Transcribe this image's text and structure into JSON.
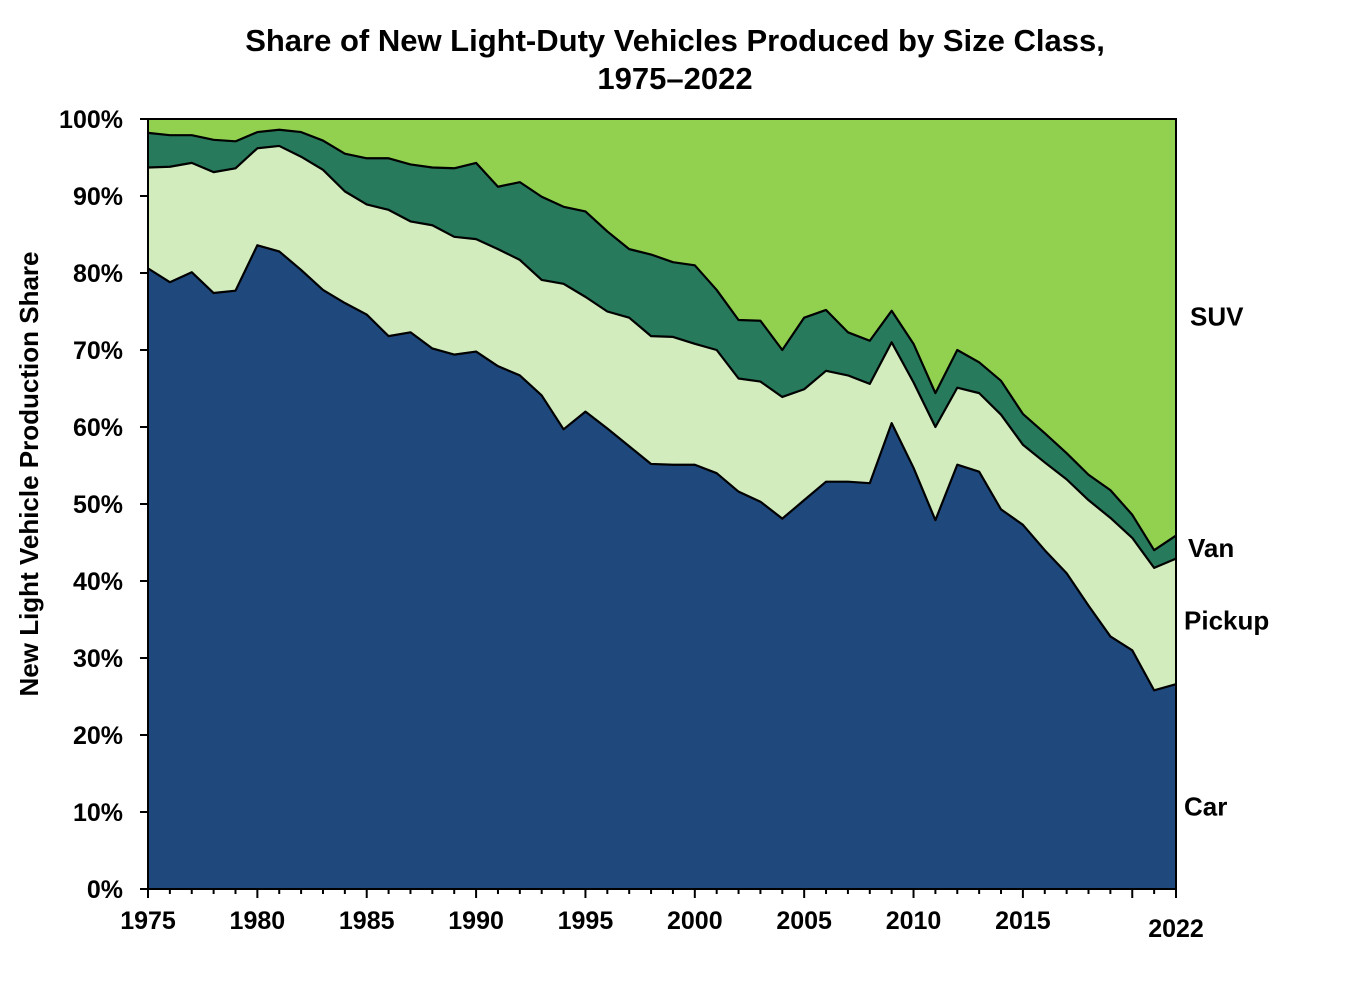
{
  "chart_data": {
    "type": "area",
    "stacked": true,
    "title": "Share of New Light-Duty Vehicles Produced by Size Class,",
    "subtitle": "1975–2022",
    "xlabel": "",
    "ylabel": "New Light Vehicle Production Share",
    "xlim": [
      1975,
      2022
    ],
    "ylim": [
      0,
      100
    ],
    "grid": false,
    "x": [
      1975,
      1976,
      1977,
      1978,
      1979,
      1980,
      1981,
      1982,
      1983,
      1984,
      1985,
      1986,
      1987,
      1988,
      1989,
      1990,
      1991,
      1992,
      1993,
      1994,
      1995,
      1996,
      1997,
      1998,
      1999,
      2000,
      2001,
      2002,
      2003,
      2004,
      2005,
      2006,
      2007,
      2008,
      2009,
      2010,
      2011,
      2012,
      2013,
      2014,
      2015,
      2016,
      2017,
      2018,
      2019,
      2020,
      2021,
      2022
    ],
    "x_ticks": [
      "1975",
      "1980",
      "1985",
      "1990",
      "1995",
      "2000",
      "2005",
      "2010",
      "2015",
      "2022"
    ],
    "x_tick_values": [
      1975,
      1980,
      1985,
      1990,
      1995,
      2000,
      2005,
      2010,
      2015,
      2022
    ],
    "y_ticks": [
      "0%",
      "10%",
      "20%",
      "30%",
      "40%",
      "50%",
      "60%",
      "70%",
      "80%",
      "90%",
      "100%"
    ],
    "y_tick_values": [
      0,
      10,
      20,
      30,
      40,
      50,
      60,
      70,
      80,
      90,
      100
    ],
    "series": [
      {
        "name": "Car",
        "color": "#1F497D",
        "values": [
          80.6,
          78.8,
          80.1,
          77.4,
          77.7,
          83.6,
          82.8,
          80.4,
          77.8,
          76.1,
          74.6,
          71.8,
          72.3,
          70.2,
          69.4,
          69.8,
          67.9,
          66.7,
          64.1,
          59.7,
          62.0,
          59.8,
          57.5,
          55.2,
          55.1,
          55.1,
          54.0,
          51.6,
          50.3,
          48.1,
          50.5,
          52.9,
          52.9,
          52.7,
          60.5,
          54.7,
          47.9,
          55.1,
          54.2,
          49.3,
          47.3,
          44.0,
          41.0,
          36.8,
          32.8,
          31.0,
          25.8,
          26.6
        ]
      },
      {
        "name": "Pickup",
        "color": "#D3ECBD",
        "values": [
          13.1,
          15.0,
          14.2,
          15.7,
          15.9,
          12.6,
          13.7,
          14.7,
          15.6,
          14.5,
          14.3,
          16.4,
          14.4,
          16.0,
          15.3,
          14.6,
          15.2,
          15.0,
          15.0,
          18.9,
          14.9,
          15.2,
          16.7,
          16.6,
          16.6,
          15.7,
          16.0,
          14.7,
          15.6,
          15.8,
          14.4,
          14.4,
          13.8,
          12.9,
          10.5,
          11.1,
          12.1,
          10.0,
          10.2,
          12.3,
          10.4,
          11.4,
          12.2,
          13.7,
          15.4,
          14.6,
          15.9,
          16.3
        ]
      },
      {
        "name": "Van",
        "color": "#287A5C",
        "values": [
          4.5,
          4.1,
          3.6,
          4.2,
          3.5,
          2.1,
          2.1,
          3.2,
          3.8,
          4.9,
          6.0,
          6.7,
          7.4,
          7.5,
          8.9,
          9.9,
          8.1,
          10.1,
          10.8,
          10.0,
          11.1,
          10.4,
          8.9,
          10.6,
          9.7,
          10.2,
          7.8,
          7.6,
          7.9,
          6.1,
          9.3,
          7.9,
          5.6,
          5.6,
          4.1,
          5.0,
          4.4,
          4.9,
          4.0,
          4.4,
          4.0,
          3.8,
          3.4,
          3.3,
          3.6,
          3.0,
          2.3,
          3.0
        ]
      },
      {
        "name": "SUV",
        "color": "#92D050",
        "values": [
          1.8,
          2.1,
          2.1,
          2.7,
          2.9,
          1.7,
          1.4,
          1.7,
          2.8,
          4.5,
          5.1,
          5.1,
          5.9,
          6.3,
          6.4,
          5.7,
          8.8,
          8.2,
          10.1,
          11.4,
          12.0,
          14.6,
          16.9,
          17.6,
          18.6,
          19.0,
          22.2,
          26.1,
          26.2,
          30.0,
          25.8,
          24.8,
          27.7,
          28.8,
          24.9,
          29.2,
          35.6,
          30.0,
          31.6,
          34.0,
          38.3,
          40.8,
          43.4,
          46.2,
          48.2,
          51.4,
          56.0,
          54.1
        ]
      }
    ],
    "series_labels": [
      "SUV",
      "Van",
      "Pickup",
      "Car"
    ],
    "legend_placement": "right-inline"
  }
}
